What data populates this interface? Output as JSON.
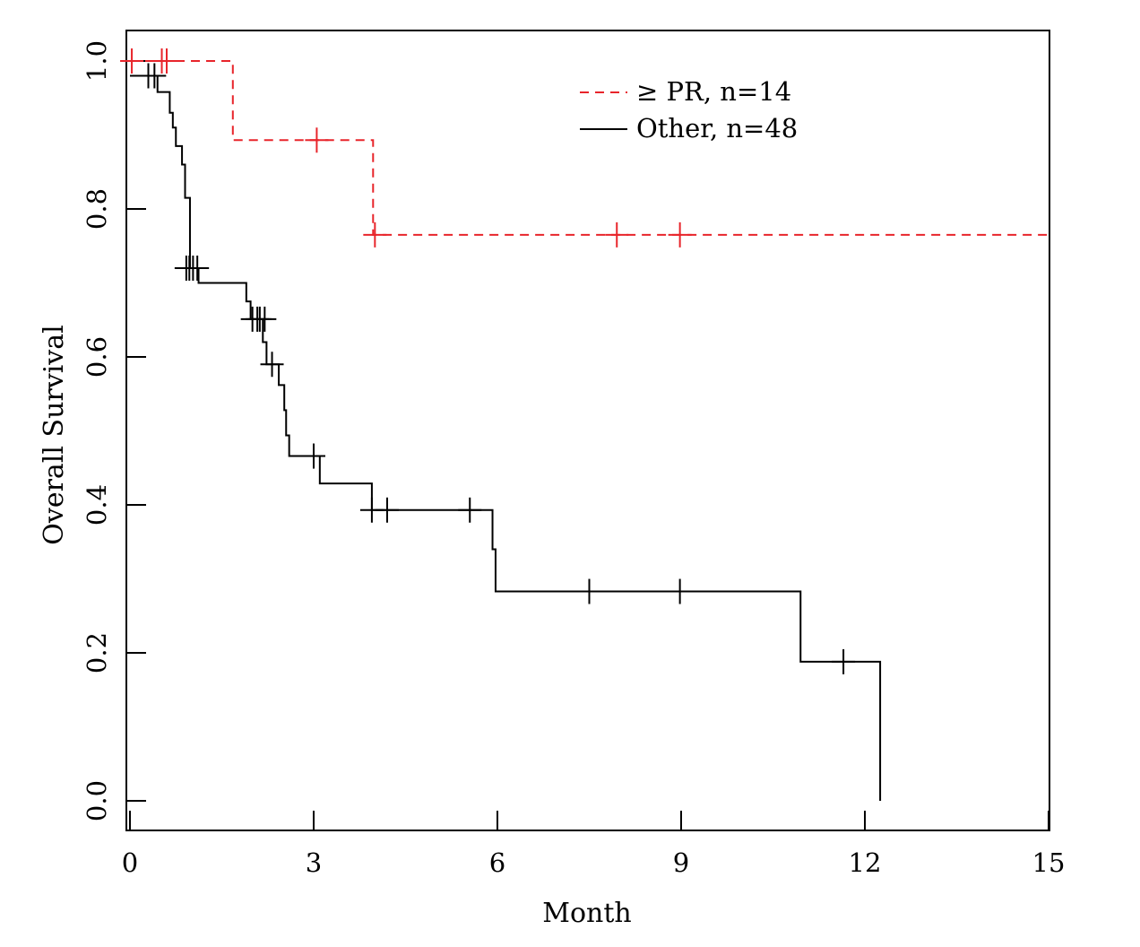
{
  "chart_data": {
    "type": "line",
    "subtype": "kaplan-meier-step",
    "title": "",
    "xlabel": "Month",
    "ylabel": "Overall Survival",
    "xlim": [
      0,
      15
    ],
    "ylim": [
      0,
      1
    ],
    "xticks": [
      0,
      3,
      6,
      9,
      12,
      15
    ],
    "xtick_labels": [
      "0",
      "3",
      "6",
      "9",
      "12",
      "15"
    ],
    "yticks": [
      0.0,
      0.2,
      0.4,
      0.6,
      0.8,
      1.0
    ],
    "ytick_labels": [
      "0.0",
      "0.2",
      "0.4",
      "0.6",
      "0.8",
      "1.0"
    ],
    "grid": false,
    "legend_position": "top-right",
    "series": [
      {
        "name": "≥ PR, n=14",
        "color": "#e8252b",
        "dash": "dashed",
        "steps": [
          [
            0,
            1.0
          ],
          [
            1.68,
            0.893
          ],
          [
            3.97,
            0.765
          ],
          [
            15.0,
            0.765
          ]
        ],
        "censors": [
          [
            0.03,
            1.0
          ],
          [
            0.52,
            1.0
          ],
          [
            0.6,
            1.0
          ],
          [
            3.05,
            0.893
          ],
          [
            4.0,
            0.765
          ],
          [
            7.95,
            0.765
          ],
          [
            8.98,
            0.765
          ]
        ]
      },
      {
        "name": "Other, n=48",
        "color": "#000000",
        "dash": "solid",
        "steps": [
          [
            0,
            0.98
          ],
          [
            0.35,
            0.98
          ],
          [
            0.45,
            0.958
          ],
          [
            0.65,
            0.93
          ],
          [
            0.7,
            0.91
          ],
          [
            0.75,
            0.885
          ],
          [
            0.85,
            0.86
          ],
          [
            0.9,
            0.815
          ],
          [
            0.98,
            0.72
          ],
          [
            1.12,
            0.7
          ],
          [
            1.9,
            0.675
          ],
          [
            1.97,
            0.651
          ],
          [
            2.17,
            0.62
          ],
          [
            2.23,
            0.59
          ],
          [
            2.43,
            0.562
          ],
          [
            2.52,
            0.528
          ],
          [
            2.55,
            0.494
          ],
          [
            2.6,
            0.466
          ],
          [
            3.1,
            0.429
          ],
          [
            3.95,
            0.393
          ],
          [
            5.92,
            0.34
          ],
          [
            5.97,
            0.283
          ],
          [
            10.95,
            0.188
          ],
          [
            12.25,
            0.0
          ]
        ],
        "censors": [
          [
            0.3,
            0.98
          ],
          [
            0.4,
            0.98
          ],
          [
            0.92,
            0.72
          ],
          [
            0.97,
            0.72
          ],
          [
            1.03,
            0.72
          ],
          [
            1.1,
            0.72
          ],
          [
            2.0,
            0.651
          ],
          [
            2.08,
            0.651
          ],
          [
            2.12,
            0.651
          ],
          [
            2.2,
            0.651
          ],
          [
            2.32,
            0.59
          ],
          [
            3.0,
            0.466
          ],
          [
            3.95,
            0.393
          ],
          [
            4.2,
            0.393
          ],
          [
            5.55,
            0.393
          ],
          [
            7.5,
            0.283
          ],
          [
            8.98,
            0.283
          ],
          [
            11.65,
            0.188
          ]
        ]
      }
    ]
  }
}
